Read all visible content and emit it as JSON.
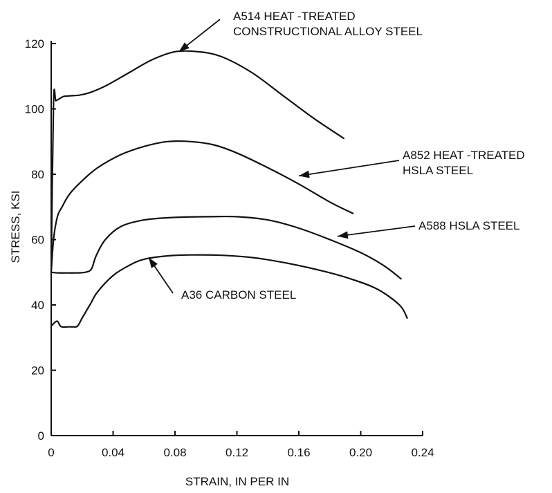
{
  "chart_data": {
    "type": "line",
    "title": "",
    "xlabel": "STRAIN, IN PER IN",
    "ylabel": "STRESS, KSI",
    "xlim": [
      0,
      0.24
    ],
    "ylim": [
      0,
      120
    ],
    "xticks": [
      0,
      0.04,
      0.08,
      0.12,
      0.16,
      0.2,
      0.24
    ],
    "xtick_labels": [
      "0",
      "0.04",
      "0.08",
      "0.12",
      "0.16",
      "0.20",
      "0.24"
    ],
    "yticks": [
      0,
      20,
      40,
      60,
      80,
      100,
      120
    ],
    "ytick_labels": [
      "0",
      "20",
      "40",
      "60",
      "80",
      "100",
      "120"
    ],
    "grid": false,
    "series": [
      {
        "x": [
          0,
          0.0015,
          0.003,
          0.005,
          0.008,
          0.012,
          0.018,
          0.025,
          0.035,
          0.05,
          0.065,
          0.08,
          0.095,
          0.11,
          0.13,
          0.15,
          0.17,
          0.189
        ],
        "y": [
          50,
          102,
          102.5,
          103,
          103.8,
          104,
          104.2,
          105,
          107,
          111,
          115,
          117.5,
          117.5,
          116,
          111,
          104,
          97,
          91
        ]
      },
      {
        "x": [
          0,
          0.0015,
          0.004,
          0.007,
          0.012,
          0.02,
          0.03,
          0.045,
          0.06,
          0.075,
          0.09,
          0.105,
          0.12,
          0.14,
          0.16,
          0.18,
          0.195
        ],
        "y": [
          50,
          60,
          67,
          70,
          74,
          78,
          82,
          86,
          88.5,
          90,
          90,
          89,
          86.5,
          82,
          77,
          71.5,
          68
        ]
      },
      {
        "x": [
          0,
          0.004,
          0.01,
          0.016,
          0.022,
          0.026,
          0.029,
          0.035,
          0.045,
          0.06,
          0.08,
          0.1,
          0.12,
          0.14,
          0.16,
          0.18,
          0.2,
          0.215,
          0.226
        ],
        "y": [
          50,
          49.8,
          49.8,
          49.8,
          50,
          51,
          55,
          60,
          64,
          66,
          66.8,
          67,
          67,
          66,
          63.5,
          60,
          56,
          52,
          48
        ]
      },
      {
        "x": [
          0,
          0.002,
          0.004,
          0.006,
          0.008,
          0.011,
          0.014,
          0.017,
          0.02,
          0.025,
          0.03,
          0.04,
          0.05,
          0.06,
          0.075,
          0.09,
          0.11,
          0.13,
          0.15,
          0.17,
          0.19,
          0.21,
          0.225,
          0.23
        ],
        "y": [
          33.5,
          34.5,
          35,
          33.5,
          33.2,
          33.3,
          33.3,
          33.5,
          36,
          40,
          44,
          49,
          52,
          54,
          55,
          55.3,
          55.2,
          54.5,
          53,
          51,
          48.5,
          45,
          40,
          36
        ]
      }
    ],
    "annotations": [
      {
        "lines": [
          "A514 HEAT -TREATED",
          "CONSTRUCTIONAL ALLOY STEEL"
        ],
        "points_to": [
          0.0825,
          117.5
        ]
      },
      {
        "lines": [
          "A852 HEAT -TREATED",
          "HSLA STEEL"
        ],
        "points_to": [
          0.16,
          79.5
        ]
      },
      {
        "lines": [
          "A588 HSLA STEEL"
        ],
        "points_to": [
          0.185,
          61
        ]
      },
      {
        "lines": [
          "A36 CARBON STEEL"
        ],
        "points_to": [
          0.063,
          54.5
        ]
      }
    ]
  }
}
